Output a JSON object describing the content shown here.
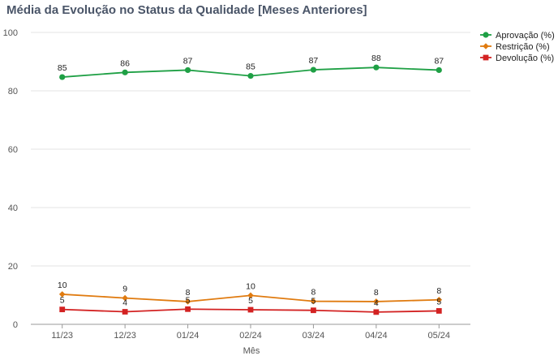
{
  "chart_data": {
    "type": "line",
    "title": "Média da Evolução no Status da Qualidade [Meses Anteriores]",
    "xlabel": "Mês",
    "ylabel": "",
    "ylim": [
      0,
      100
    ],
    "yticks": [
      0,
      20,
      40,
      60,
      80,
      100
    ],
    "grid": true,
    "legend_position": "top-right",
    "categories": [
      "11/23",
      "12/23",
      "01/24",
      "02/24",
      "03/24",
      "04/24",
      "05/24"
    ],
    "series": [
      {
        "name": "Aprovação (%)",
        "color": "#1fa045",
        "marker": "circle",
        "values": [
          84.7,
          86.3,
          87.1,
          85.1,
          87.2,
          88.0,
          87.1
        ],
        "labels": [
          "85",
          "86",
          "87",
          "85",
          "87",
          "88",
          "87"
        ]
      },
      {
        "name": "Restrição (%)",
        "color": "#e07b10",
        "marker": "diamond",
        "values": [
          10.3,
          9.0,
          7.8,
          9.9,
          7.9,
          7.8,
          8.4
        ],
        "labels": [
          "10",
          "9",
          "8",
          "10",
          "8",
          "8",
          "8"
        ]
      },
      {
        "name": "Devolução (%)",
        "color": "#d32222",
        "marker": "square",
        "values": [
          5.1,
          4.3,
          5.2,
          5.0,
          4.8,
          4.2,
          4.6
        ],
        "labels": [
          "5",
          "4",
          "5",
          "5",
          "5",
          "4",
          "5"
        ]
      }
    ]
  }
}
